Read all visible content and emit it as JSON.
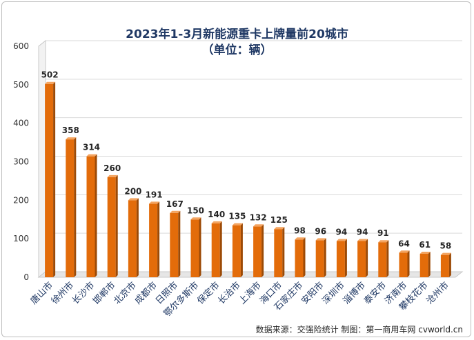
{
  "chart_data": {
    "type": "bar",
    "title": "2023年1-3月新能源重卡上牌量前20城市",
    "subtitle": "（单位：辆）",
    "categories": [
      "唐山市",
      "徐州市",
      "长沙市",
      "邯郸市",
      "北京市",
      "成都市",
      "日照市",
      "鄂尔多斯市",
      "保定市",
      "长治市",
      "上海市",
      "海口市",
      "石家庄市",
      "安阳市",
      "深圳市",
      "淄博市",
      "泰安市",
      "济南市",
      "攀枝花市",
      "沧州市"
    ],
    "values": [
      502,
      358,
      314,
      260,
      200,
      191,
      167,
      150,
      140,
      135,
      132,
      125,
      98,
      96,
      94,
      94,
      91,
      64,
      61,
      58
    ],
    "ylim": [
      0,
      600
    ],
    "yticks": [
      0,
      100,
      200,
      300,
      400,
      500,
      600
    ],
    "grid": true,
    "bar_color": "#e36c0a"
  },
  "source": "数据来源：交强险统计   制图：第一商用车网 cvworld.cn"
}
